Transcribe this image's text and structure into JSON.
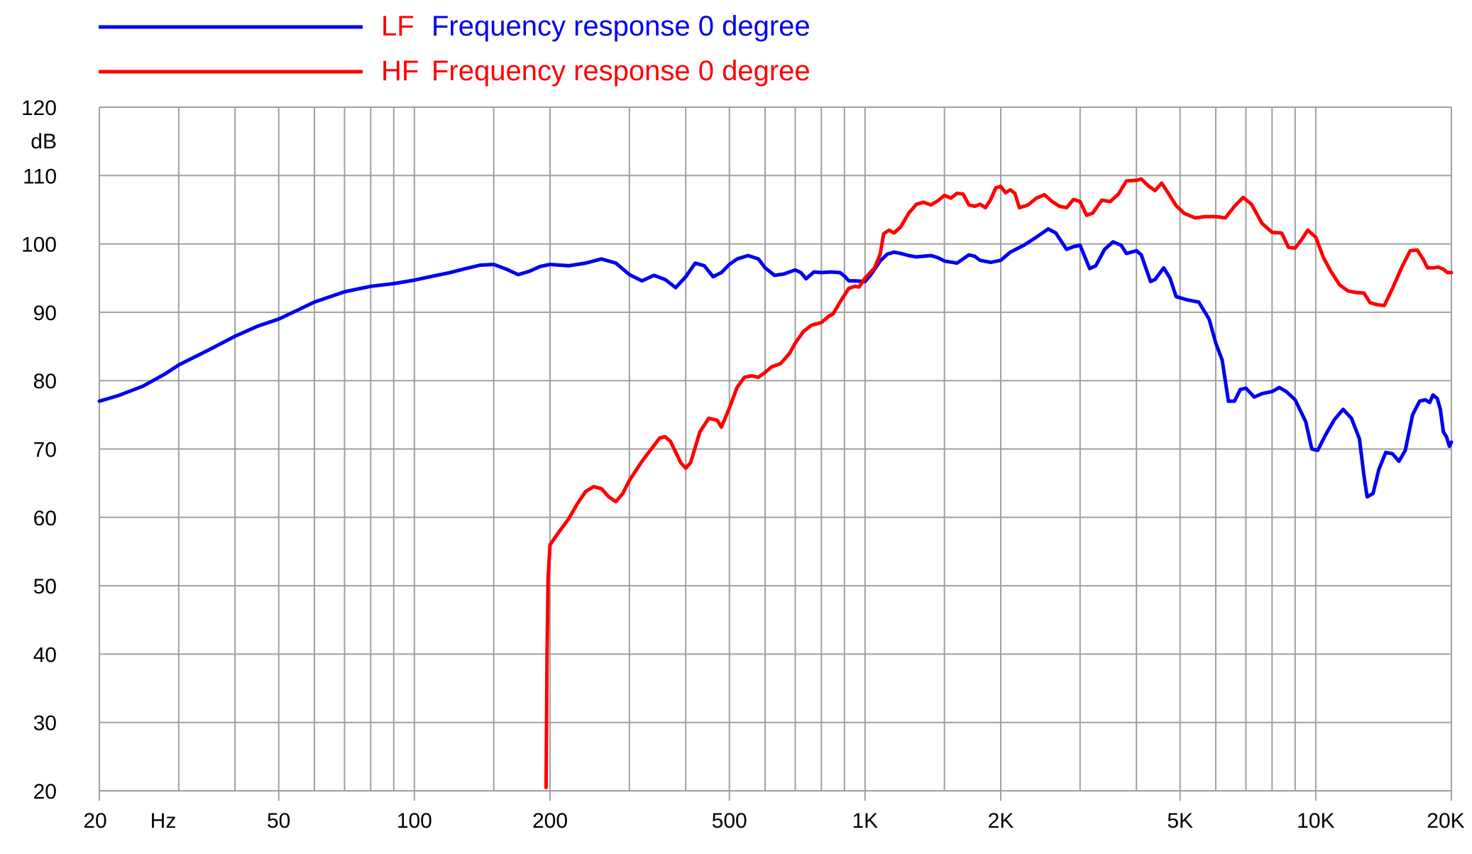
{
  "chart_data": {
    "type": "line",
    "x_scale": "log",
    "x_range": [
      20,
      20000
    ],
    "y_range": [
      20,
      120
    ],
    "grid": true,
    "legend_position": "top-left",
    "y_unit_label": "dB",
    "x_unit_label": "Hz",
    "x_major_ticks": [
      {
        "value": 20,
        "label": "20"
      },
      {
        "value": 50,
        "label": "50"
      },
      {
        "value": 100,
        "label": "100"
      },
      {
        "value": 200,
        "label": "200"
      },
      {
        "value": 500,
        "label": "500"
      },
      {
        "value": 1000,
        "label": "1K"
      },
      {
        "value": 2000,
        "label": "2K"
      },
      {
        "value": 5000,
        "label": "5K"
      },
      {
        "value": 10000,
        "label": "10K"
      },
      {
        "value": 20000,
        "label": "20K"
      }
    ],
    "x_minor_grid": [
      30,
      40,
      60,
      70,
      80,
      90,
      150,
      300,
      400,
      600,
      700,
      800,
      900,
      1500,
      3000,
      4000,
      6000,
      7000,
      8000,
      9000
    ],
    "y_ticks": [
      {
        "value": 20,
        "label": "20"
      },
      {
        "value": 30,
        "label": "30"
      },
      {
        "value": 40,
        "label": "40"
      },
      {
        "value": 50,
        "label": "50"
      },
      {
        "value": 60,
        "label": "60"
      },
      {
        "value": 70,
        "label": "70"
      },
      {
        "value": 80,
        "label": "80"
      },
      {
        "value": 90,
        "label": "90"
      },
      {
        "value": 100,
        "label": "100"
      },
      {
        "value": 110,
        "label": "110"
      },
      {
        "value": 120,
        "label": "120"
      }
    ],
    "legend": [
      {
        "prefix": "LF",
        "text": "Frequency response 0 degree",
        "prefix_color": "#ff0000",
        "text_color": "#0000ee",
        "line_color": "#0000ee"
      },
      {
        "prefix": "HF",
        "text": "Frequency response 0 degree",
        "prefix_color": "#ff0000",
        "text_color": "#ff0000",
        "line_color": "#ff0000"
      }
    ],
    "series": [
      {
        "name": "LF Frequency response 0 degree",
        "color": "#0000ee",
        "points": [
          [
            20,
            77
          ],
          [
            22,
            77.8
          ],
          [
            25,
            79.2
          ],
          [
            28,
            81
          ],
          [
            30,
            82.3
          ],
          [
            35,
            84.5
          ],
          [
            40,
            86.5
          ],
          [
            45,
            88
          ],
          [
            50,
            89
          ],
          [
            55,
            90.3
          ],
          [
            60,
            91.5
          ],
          [
            70,
            93
          ],
          [
            80,
            93.8
          ],
          [
            90,
            94.2
          ],
          [
            100,
            94.7
          ],
          [
            110,
            95.3
          ],
          [
            120,
            95.8
          ],
          [
            130,
            96.4
          ],
          [
            140,
            96.9
          ],
          [
            150,
            97
          ],
          [
            160,
            96.3
          ],
          [
            170,
            95.5
          ],
          [
            180,
            96
          ],
          [
            190,
            96.7
          ],
          [
            200,
            97
          ],
          [
            220,
            96.8
          ],
          [
            240,
            97.2
          ],
          [
            260,
            97.8
          ],
          [
            280,
            97.2
          ],
          [
            300,
            95.5
          ],
          [
            320,
            94.6
          ],
          [
            340,
            95.4
          ],
          [
            360,
            94.8
          ],
          [
            380,
            93.6
          ],
          [
            400,
            95.2
          ],
          [
            420,
            97.2
          ],
          [
            440,
            96.8
          ],
          [
            460,
            95.2
          ],
          [
            480,
            95.8
          ],
          [
            500,
            97
          ],
          [
            520,
            97.8
          ],
          [
            550,
            98.3
          ],
          [
            580,
            97.8
          ],
          [
            600,
            96.5
          ],
          [
            630,
            95.4
          ],
          [
            660,
            95.6
          ],
          [
            700,
            96.2
          ],
          [
            720,
            95.8
          ],
          [
            740,
            94.9
          ],
          [
            770,
            95.9
          ],
          [
            800,
            95.8
          ],
          [
            840,
            95.9
          ],
          [
            880,
            95.8
          ],
          [
            900,
            95.3
          ],
          [
            920,
            94.6
          ],
          [
            950,
            94.6
          ],
          [
            1000,
            94.5
          ],
          [
            1030,
            95.5
          ],
          [
            1080,
            97.5
          ],
          [
            1120,
            98.5
          ],
          [
            1160,
            98.8
          ],
          [
            1200,
            98.6
          ],
          [
            1250,
            98.3
          ],
          [
            1300,
            98.1
          ],
          [
            1400,
            98.3
          ],
          [
            1450,
            98
          ],
          [
            1500,
            97.5
          ],
          [
            1600,
            97.2
          ],
          [
            1700,
            98.4
          ],
          [
            1750,
            98.2
          ],
          [
            1800,
            97.6
          ],
          [
            1900,
            97.3
          ],
          [
            2000,
            97.6
          ],
          [
            2100,
            98.8
          ],
          [
            2250,
            99.8
          ],
          [
            2400,
            101
          ],
          [
            2550,
            102.2
          ],
          [
            2650,
            101.6
          ],
          [
            2800,
            99.2
          ],
          [
            2900,
            99.6
          ],
          [
            3000,
            99.8
          ],
          [
            3150,
            96.4
          ],
          [
            3250,
            96.8
          ],
          [
            3400,
            99.2
          ],
          [
            3550,
            100.3
          ],
          [
            3700,
            99.8
          ],
          [
            3800,
            98.6
          ],
          [
            4000,
            99
          ],
          [
            4100,
            98.4
          ],
          [
            4300,
            94.5
          ],
          [
            4400,
            94.8
          ],
          [
            4600,
            96.5
          ],
          [
            4750,
            95
          ],
          [
            4900,
            92.3
          ],
          [
            5200,
            91.8
          ],
          [
            5500,
            91.5
          ],
          [
            5800,
            89
          ],
          [
            6000,
            85.5
          ],
          [
            6200,
            83
          ],
          [
            6400,
            77
          ],
          [
            6600,
            77
          ],
          [
            6800,
            78.7
          ],
          [
            7000,
            78.9
          ],
          [
            7300,
            77.6
          ],
          [
            7600,
            78.1
          ],
          [
            8000,
            78.4
          ],
          [
            8300,
            79
          ],
          [
            8600,
            78.4
          ],
          [
            9000,
            77.2
          ],
          [
            9500,
            74
          ],
          [
            9800,
            70
          ],
          [
            10100,
            69.8
          ],
          [
            10500,
            72
          ],
          [
            11000,
            74.3
          ],
          [
            11500,
            75.8
          ],
          [
            12000,
            74.5
          ],
          [
            12500,
            71.5
          ],
          [
            12800,
            66
          ],
          [
            13000,
            63
          ],
          [
            13400,
            63.5
          ],
          [
            13800,
            67
          ],
          [
            14300,
            69.5
          ],
          [
            14800,
            69.3
          ],
          [
            15300,
            68.2
          ],
          [
            15800,
            69.8
          ],
          [
            16400,
            75
          ],
          [
            17000,
            77
          ],
          [
            17500,
            77.2
          ],
          [
            17900,
            76.8
          ],
          [
            18200,
            77.9
          ],
          [
            18600,
            77.4
          ],
          [
            18900,
            75.8
          ],
          [
            19200,
            72.5
          ],
          [
            19500,
            71.8
          ],
          [
            19800,
            70.4
          ],
          [
            20000,
            71
          ]
        ]
      },
      {
        "name": "HF Frequency response 0 degree",
        "color": "#ff0000",
        "points": [
          [
            196,
            20.5
          ],
          [
            197,
            40
          ],
          [
            198,
            51
          ],
          [
            200,
            56
          ],
          [
            205,
            57
          ],
          [
            210,
            58
          ],
          [
            220,
            59.8
          ],
          [
            230,
            62
          ],
          [
            240,
            63.8
          ],
          [
            250,
            64.5
          ],
          [
            260,
            64.2
          ],
          [
            270,
            63
          ],
          [
            280,
            62.3
          ],
          [
            290,
            63.5
          ],
          [
            300,
            65.4
          ],
          [
            320,
            68.2
          ],
          [
            340,
            70.5
          ],
          [
            350,
            71.6
          ],
          [
            360,
            71.8
          ],
          [
            370,
            71.1
          ],
          [
            390,
            68
          ],
          [
            400,
            67.2
          ],
          [
            410,
            68
          ],
          [
            430,
            72.5
          ],
          [
            450,
            74.5
          ],
          [
            470,
            74.2
          ],
          [
            480,
            73.2
          ],
          [
            500,
            76
          ],
          [
            520,
            79
          ],
          [
            540,
            80.5
          ],
          [
            560,
            80.7
          ],
          [
            580,
            80.5
          ],
          [
            600,
            81.2
          ],
          [
            620,
            82
          ],
          [
            650,
            82.5
          ],
          [
            680,
            84
          ],
          [
            700,
            85.5
          ],
          [
            730,
            87.2
          ],
          [
            760,
            88.1
          ],
          [
            800,
            88.5
          ],
          [
            830,
            89.4
          ],
          [
            850,
            89.8
          ],
          [
            880,
            91.5
          ],
          [
            920,
            93.5
          ],
          [
            950,
            93.8
          ],
          [
            970,
            93.7
          ],
          [
            1000,
            95
          ],
          [
            1050,
            96.5
          ],
          [
            1080,
            98.5
          ],
          [
            1100,
            101.5
          ],
          [
            1130,
            102
          ],
          [
            1160,
            101.6
          ],
          [
            1200,
            102.5
          ],
          [
            1250,
            104.5
          ],
          [
            1300,
            105.8
          ],
          [
            1350,
            106.1
          ],
          [
            1400,
            105.7
          ],
          [
            1450,
            106.3
          ],
          [
            1500,
            107.1
          ],
          [
            1550,
            106.7
          ],
          [
            1600,
            107.4
          ],
          [
            1650,
            107.3
          ],
          [
            1700,
            105.7
          ],
          [
            1750,
            105.5
          ],
          [
            1800,
            105.8
          ],
          [
            1850,
            105.3
          ],
          [
            1900,
            106.5
          ],
          [
            1950,
            108.2
          ],
          [
            2000,
            108.4
          ],
          [
            2050,
            107.5
          ],
          [
            2100,
            107.9
          ],
          [
            2150,
            107.4
          ],
          [
            2200,
            105.3
          ],
          [
            2300,
            105.7
          ],
          [
            2400,
            106.7
          ],
          [
            2500,
            107.2
          ],
          [
            2600,
            106.2
          ],
          [
            2700,
            105.5
          ],
          [
            2800,
            105.3
          ],
          [
            2900,
            106.5
          ],
          [
            3000,
            106.2
          ],
          [
            3100,
            104.2
          ],
          [
            3200,
            104.5
          ],
          [
            3350,
            106.4
          ],
          [
            3500,
            106.2
          ],
          [
            3650,
            107.3
          ],
          [
            3800,
            109.2
          ],
          [
            4000,
            109.3
          ],
          [
            4100,
            109.5
          ],
          [
            4250,
            108.5
          ],
          [
            4400,
            107.8
          ],
          [
            4550,
            108.9
          ],
          [
            4700,
            107.5
          ],
          [
            4900,
            105.6
          ],
          [
            5100,
            104.5
          ],
          [
            5400,
            103.8
          ],
          [
            5700,
            104
          ],
          [
            6000,
            104
          ],
          [
            6300,
            103.8
          ],
          [
            6600,
            105.5
          ],
          [
            6900,
            106.8
          ],
          [
            7200,
            105.8
          ],
          [
            7600,
            103
          ],
          [
            8000,
            101.7
          ],
          [
            8400,
            101.6
          ],
          [
            8700,
            99.5
          ],
          [
            9000,
            99.4
          ],
          [
            9300,
            100.6
          ],
          [
            9600,
            102
          ],
          [
            10000,
            101
          ],
          [
            10400,
            98
          ],
          [
            10800,
            96
          ],
          [
            11300,
            94
          ],
          [
            11800,
            93.1
          ],
          [
            12300,
            92.9
          ],
          [
            12800,
            92.8
          ],
          [
            13200,
            91.4
          ],
          [
            13700,
            91.1
          ],
          [
            14200,
            91
          ],
          [
            14800,
            93.5
          ],
          [
            15500,
            96.5
          ],
          [
            16200,
            99
          ],
          [
            16800,
            99.1
          ],
          [
            17300,
            97.8
          ],
          [
            17700,
            96.5
          ],
          [
            18200,
            96.5
          ],
          [
            18700,
            96.6
          ],
          [
            19200,
            96.3
          ],
          [
            19600,
            95.8
          ],
          [
            20000,
            95.8
          ]
        ]
      }
    ]
  }
}
